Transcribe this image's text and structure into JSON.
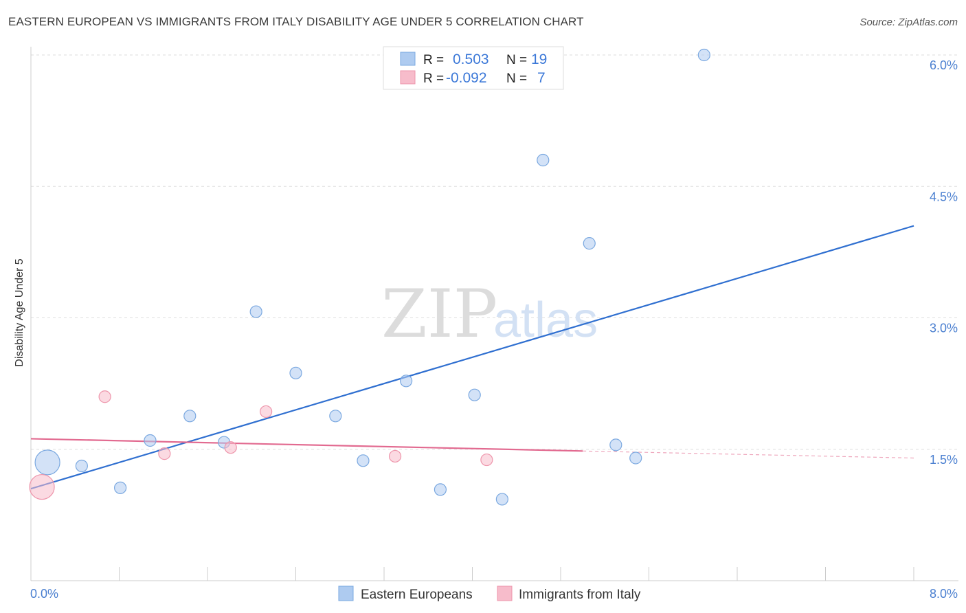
{
  "title": "EASTERN EUROPEAN VS IMMIGRANTS FROM ITALY DISABILITY AGE UNDER 5 CORRELATION CHART",
  "source": "Source: ZipAtlas.com",
  "watermark": {
    "zip": "ZIP",
    "atlas": "atlas"
  },
  "legend": {
    "rows": [
      {
        "r_label": "R =",
        "r_value": "0.503",
        "n_label": "N =",
        "n_value": "19",
        "color": "#aecbf0"
      },
      {
        "r_label": "R =",
        "r_value": "-0.092",
        "n_label": "N =",
        "n_value": "7",
        "color": "#f7bccb"
      }
    ]
  },
  "chart_data": {
    "type": "scatter",
    "title": "EASTERN EUROPEAN VS IMMIGRANTS FROM ITALY DISABILITY AGE UNDER 5 CORRELATION CHART",
    "xlabel": "",
    "ylabel": "Disability Age Under 5",
    "xlim": [
      0,
      8
    ],
    "ylim": [
      0,
      6.15
    ],
    "x_tick_labels": [
      "0.0%",
      "8.0%"
    ],
    "y_ticks": [
      {
        "value": 1.5,
        "label": "1.5%"
      },
      {
        "value": 3.0,
        "label": "3.0%"
      },
      {
        "value": 4.5,
        "label": "4.5%"
      },
      {
        "value": 6.0,
        "label": "6.0%"
      }
    ],
    "grid": true,
    "legend_position": "top-center",
    "series": [
      {
        "name": "Eastern Europeans",
        "color": "#aecbf0",
        "stroke": "#7aa8e0",
        "line_color": "#2f6fd0",
        "trend": {
          "x": [
            0.0,
            8.0
          ],
          "y": [
            1.05,
            4.05
          ]
        },
        "points": [
          {
            "x": 0.15,
            "y": 1.35,
            "size": "large"
          },
          {
            "x": 0.46,
            "y": 1.31
          },
          {
            "x": 0.81,
            "y": 1.06
          },
          {
            "x": 1.08,
            "y": 1.6
          },
          {
            "x": 1.44,
            "y": 1.88
          },
          {
            "x": 1.75,
            "y": 1.58
          },
          {
            "x": 2.04,
            "y": 3.07
          },
          {
            "x": 2.4,
            "y": 2.37
          },
          {
            "x": 2.76,
            "y": 1.88
          },
          {
            "x": 3.01,
            "y": 1.37
          },
          {
            "x": 3.4,
            "y": 2.28
          },
          {
            "x": 3.71,
            "y": 1.04
          },
          {
            "x": 4.02,
            "y": 2.12
          },
          {
            "x": 4.27,
            "y": 0.93
          },
          {
            "x": 4.64,
            "y": 4.8
          },
          {
            "x": 5.06,
            "y": 3.85
          },
          {
            "x": 5.3,
            "y": 1.55
          },
          {
            "x": 5.48,
            "y": 1.4
          },
          {
            "x": 6.1,
            "y": 6.0
          }
        ]
      },
      {
        "name": "Immigrants from Italy",
        "color": "#f7bccb",
        "stroke": "#ee95ab",
        "line_color": "#e26a90",
        "trend": {
          "x": [
            0.0,
            5.0
          ],
          "y": [
            1.62,
            1.48
          ]
        },
        "trend_extension": {
          "x": [
            5.0,
            8.0
          ],
          "y": [
            1.48,
            1.4
          ]
        },
        "points": [
          {
            "x": 0.1,
            "y": 1.07,
            "size": "large"
          },
          {
            "x": 0.67,
            "y": 2.1
          },
          {
            "x": 1.21,
            "y": 1.45
          },
          {
            "x": 1.81,
            "y": 1.52
          },
          {
            "x": 2.13,
            "y": 1.93
          },
          {
            "x": 3.3,
            "y": 1.42
          },
          {
            "x": 4.13,
            "y": 1.38
          }
        ]
      }
    ]
  }
}
